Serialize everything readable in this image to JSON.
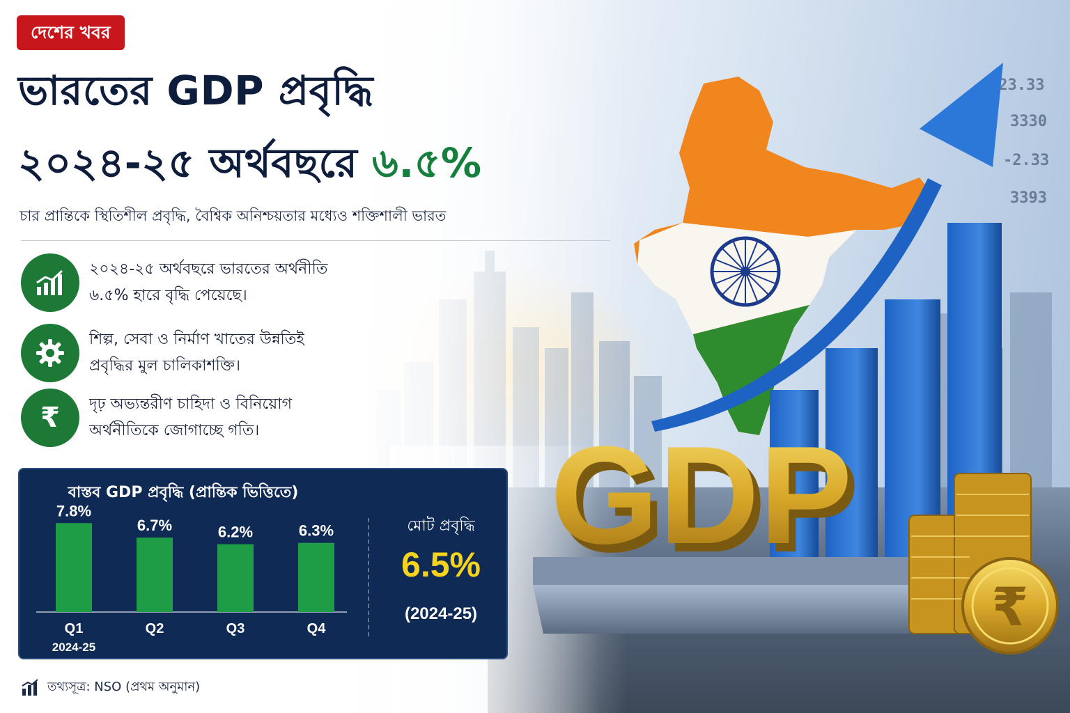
{
  "badge": "দেশের খবর",
  "title": {
    "line1": "ভারতের GDP প্রবৃদ্ধি",
    "line2_main": "২০২৪-২৫ অর্থবছরে",
    "line2_accent": "৬.৫%"
  },
  "subtitle": "চার প্রান্তিকে স্থিতিশীল প্রবৃদ্ধি, বৈশ্বিক অনিশ্চয়তার মধ্যেও শক্তিশালী ভারত",
  "points": [
    {
      "icon": "growth-chart-icon",
      "line1": "২০২৪-২৫ অর্থবছরে ভারতের অর্থনীতি",
      "line2": "৬.৫% হারে বৃদ্ধি পেয়েছে।"
    },
    {
      "icon": "gear-icon",
      "line1": "শিল্প, সেবা ও নির্মাণ খাতের উন্নতিই",
      "line2": "প্রবৃদ্ধির মুল চালিকাশক্তি।"
    },
    {
      "icon": "rupee-icon",
      "glyph": "₹",
      "line1": "দৃঢ় অভ্যন্তরীণ চাহিদা ও বিনিয়োগ",
      "line2": "অর্থনীতিকে জোগাচ্ছে গতি।"
    }
  ],
  "chart_data": {
    "type": "bar",
    "title": "বাস্তব GDP প্রবৃদ্ধি (প্রান্তিক ভিত্তিতে)",
    "categories": [
      "Q1",
      "Q2",
      "Q3",
      "Q4"
    ],
    "category_sublabel": "2024-25",
    "values": [
      7.8,
      6.7,
      6.2,
      6.3
    ],
    "value_labels": [
      "7.8%",
      "6.7%",
      "6.2%",
      "6.3%"
    ],
    "ylim": [
      0,
      8.5
    ],
    "bar_color": "#1f9d46"
  },
  "total": {
    "label": "মোট প্রবৃদ্ধি",
    "value": "6.5%",
    "period": "(2024-25)"
  },
  "source": "তথ্যসূত্র: NSO (প্রথম অনুমান)",
  "illustration": {
    "gdp_text": "GDP",
    "rupee_glyph": "₹",
    "tickers": [
      "-23.33",
      "3330",
      "-2.33",
      "3393"
    ]
  },
  "colors": {
    "badge": "#c8161d",
    "title": "#0f1d3d",
    "accent_green": "#15803d",
    "panel_bg": "#0e2a55",
    "total_value": "#f6d31c",
    "saffron": "#f2861e",
    "flag_green": "#2e8b2e",
    "chakra": "#1d3a8c",
    "arrow_blue": "#1e63c4",
    "gold": "#d9a92a"
  }
}
